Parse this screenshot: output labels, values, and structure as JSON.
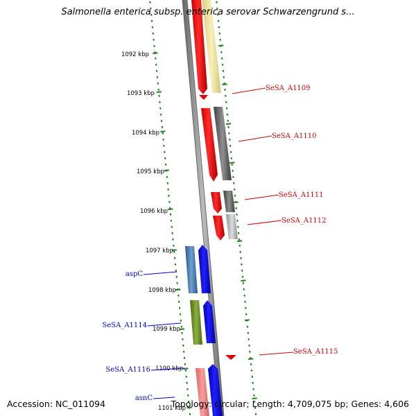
{
  "title": "Salmonella enterica subsp. enterica serovar Schwarzengrund s...",
  "accession": "Accession: NC_011094",
  "topology": "Topology: circular; Length: 4,709,075 bp; Genes: 4,606",
  "colors": {
    "backbone": "#888888",
    "ticks": "#1a7d1a",
    "gene_label_forward": "#0000cc",
    "gene_label_reverse": "#cc0000"
  },
  "kbp_labels": [
    "1092 kbp",
    "1093 kbp",
    "1094 kbp",
    "1095 kbp",
    "1096 kbp",
    "1097 kbp",
    "1098 kbp",
    "1099 kbp",
    "1100 kbp",
    "1101 kbp"
  ],
  "gene_labels": [
    {
      "name": "SeSA_A1109",
      "strand": "reverse"
    },
    {
      "name": "SeSA_A1110",
      "strand": "reverse"
    },
    {
      "name": "SeSA_A1111",
      "strand": "reverse"
    },
    {
      "name": "SeSA_A1112",
      "strand": "reverse"
    },
    {
      "name": "aspC",
      "strand": "forward"
    },
    {
      "name": "SeSA_A1114",
      "strand": "forward"
    },
    {
      "name": "SeSA_A1115",
      "strand": "reverse"
    },
    {
      "name": "SeSA_A1116",
      "strand": "forward"
    },
    {
      "name": "asnC",
      "strand": "forward"
    }
  ]
}
